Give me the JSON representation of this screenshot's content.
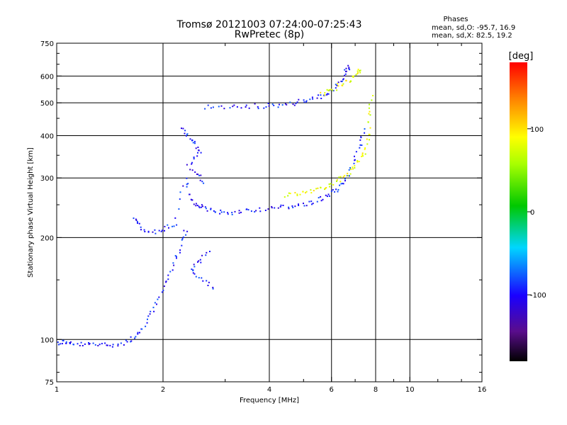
{
  "chart_data": {
    "type": "scatter",
    "title": "Tromsø 20121003 07:24:00-07:25:43",
    "subtitle": "RwPretec (8p)",
    "xlabel": "Frequency [MHz]",
    "ylabel": "Stationary phase Virtual Height [km]",
    "x_scale": "log",
    "y_scale": "log",
    "xlim": [
      1,
      16
    ],
    "ylim": [
      75,
      750
    ],
    "x_ticks": [
      1,
      2,
      4,
      6,
      8,
      10,
      16
    ],
    "y_ticks": [
      75,
      100,
      200,
      300,
      400,
      500,
      600,
      750
    ],
    "grid": true,
    "legend": {
      "title": "Phases",
      "lines": [
        "mean, sd,O: -95.7, 16.9",
        "mean, sd,X:  82.5, 19.2"
      ]
    },
    "colorbar": {
      "label": "[deg]",
      "range": [
        -180,
        180
      ],
      "ticks": [
        100,
        0,
        -100
      ]
    },
    "series": [
      {
        "name": "O",
        "phase_mean": -95.7,
        "trace": [
          [
            1.0,
            98
          ],
          [
            1.05,
            99
          ],
          [
            1.1,
            97
          ],
          [
            1.2,
            97
          ],
          [
            1.3,
            97
          ],
          [
            1.4,
            97
          ],
          [
            1.55,
            98
          ],
          [
            1.65,
            102
          ],
          [
            1.75,
            108
          ],
          [
            1.85,
            120
          ],
          [
            1.95,
            135
          ],
          [
            2.05,
            152
          ],
          [
            2.15,
            172
          ],
          [
            2.25,
            195
          ],
          [
            2.32,
            215
          ],
          [
            1.65,
            232
          ],
          [
            1.72,
            215
          ],
          [
            1.85,
            208
          ],
          [
            2.0,
            212
          ],
          [
            2.15,
            220
          ],
          [
            2.3,
            300
          ],
          [
            2.4,
            260
          ],
          [
            2.5,
            250
          ],
          [
            2.6,
            244
          ],
          [
            2.8,
            240
          ],
          [
            3.0,
            238
          ],
          [
            3.3,
            240
          ],
          [
            3.6,
            243
          ],
          [
            4.0,
            245
          ],
          [
            4.4,
            247
          ],
          [
            4.8,
            250
          ],
          [
            5.2,
            254
          ],
          [
            5.6,
            262
          ],
          [
            6.0,
            272
          ],
          [
            6.3,
            285
          ],
          [
            6.6,
            305
          ],
          [
            6.9,
            335
          ],
          [
            7.2,
            380
          ],
          [
            7.4,
            430
          ],
          [
            2.25,
            420
          ],
          [
            2.35,
            400
          ],
          [
            2.45,
            380
          ],
          [
            2.55,
            360
          ],
          [
            2.35,
            330
          ],
          [
            2.5,
            310
          ],
          [
            2.6,
            290
          ],
          [
            2.7,
            180
          ],
          [
            2.5,
            170
          ],
          [
            2.4,
            160
          ],
          [
            2.6,
            150
          ],
          [
            2.8,
            140
          ],
          [
            2.6,
            490
          ],
          [
            3.0,
            488
          ],
          [
            3.4,
            490
          ],
          [
            3.8,
            492
          ],
          [
            4.2,
            495
          ],
          [
            4.6,
            500
          ],
          [
            5.0,
            508
          ],
          [
            5.4,
            518
          ],
          [
            5.8,
            535
          ],
          [
            6.1,
            555
          ],
          [
            6.4,
            590
          ],
          [
            6.6,
            630
          ],
          [
            6.75,
            645
          ]
        ]
      },
      {
        "name": "X",
        "phase_mean": 82.5,
        "trace": [
          [
            4.4,
            268
          ],
          [
            4.8,
            272
          ],
          [
            5.2,
            276
          ],
          [
            5.6,
            282
          ],
          [
            6.0,
            290
          ],
          [
            6.4,
            300
          ],
          [
            6.8,
            315
          ],
          [
            7.1,
            335
          ],
          [
            7.4,
            360
          ],
          [
            7.6,
            400
          ],
          [
            7.7,
            470
          ],
          [
            7.75,
            530
          ],
          [
            5.6,
            530
          ],
          [
            6.0,
            550
          ],
          [
            6.4,
            570
          ],
          [
            6.8,
            590
          ],
          [
            7.1,
            615
          ],
          [
            7.3,
            640
          ]
        ]
      }
    ]
  }
}
